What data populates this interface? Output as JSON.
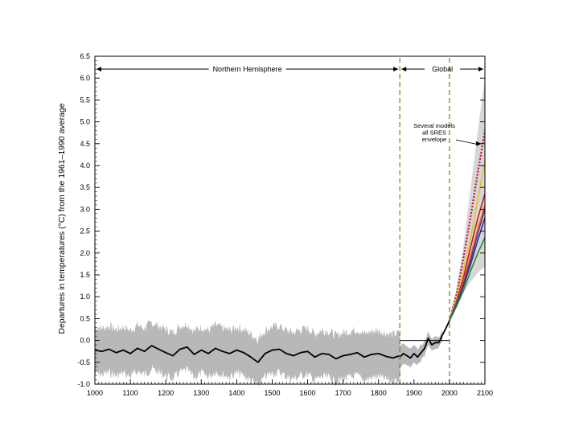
{
  "chart_data": {
    "type": "line",
    "title": "",
    "ylabel": "Departures in temperatures (°C) from the 1961–1990 average",
    "xlabel": "",
    "xlim": [
      1000,
      2100
    ],
    "ylim": [
      -1.0,
      6.5
    ],
    "x_ticks": [
      1000,
      1100,
      1200,
      1300,
      1400,
      1500,
      1600,
      1700,
      1800,
      1900,
      2000,
      2100
    ],
    "x_tick_labels": [
      "1000",
      "1100",
      "1200",
      "1300",
      "1400",
      "1500",
      "1600",
      "1700",
      "1800",
      "1900",
      "2000",
      "2100"
    ],
    "y_ticks": [
      -1.0,
      -0.5,
      0.0,
      0.5,
      1.0,
      1.5,
      2.0,
      2.5,
      3.0,
      3.5,
      4.0,
      4.5,
      5.0,
      5.5,
      6.0,
      6.5
    ],
    "y_tick_labels": [
      "-1.0",
      "-0.5",
      "0.0",
      "0.5",
      "1.0",
      "1.5",
      "2.0",
      "2.5",
      "3.0",
      "3.5",
      "4.0",
      "4.5",
      "5.0",
      "5.5",
      "6.0",
      "6.5"
    ],
    "grid": false,
    "regions": [
      {
        "label": "Northern Hemisphere",
        "x": [
          1000,
          1860
        ]
      },
      {
        "label": "Global",
        "x": [
          1860,
          2100
        ]
      }
    ],
    "dividers": [
      1860,
      2000
    ],
    "annotation": {
      "text": [
        "Several models",
        "all SRES",
        "envelope"
      ],
      "points_to": [
        2090,
        4.5
      ]
    },
    "reference_segment": {
      "x": [
        1860,
        2000
      ],
      "y": 0.0
    },
    "series": [
      {
        "role": "reconstruction",
        "color": "#000000",
        "x": [
          1000,
          1020,
          1040,
          1060,
          1080,
          1100,
          1120,
          1140,
          1160,
          1180,
          1200,
          1220,
          1240,
          1260,
          1280,
          1300,
          1320,
          1340,
          1360,
          1380,
          1400,
          1420,
          1440,
          1460,
          1480,
          1500,
          1520,
          1540,
          1560,
          1580,
          1600,
          1620,
          1640,
          1660,
          1680,
          1700,
          1720,
          1740,
          1760,
          1780,
          1800,
          1820,
          1840,
          1860
        ],
        "y": [
          -0.22,
          -0.25,
          -0.2,
          -0.28,
          -0.22,
          -0.3,
          -0.18,
          -0.25,
          -0.12,
          -0.2,
          -0.28,
          -0.35,
          -0.2,
          -0.15,
          -0.32,
          -0.22,
          -0.3,
          -0.18,
          -0.25,
          -0.3,
          -0.22,
          -0.28,
          -0.38,
          -0.5,
          -0.3,
          -0.22,
          -0.2,
          -0.3,
          -0.35,
          -0.28,
          -0.25,
          -0.38,
          -0.3,
          -0.32,
          -0.42,
          -0.35,
          -0.32,
          -0.28,
          -0.38,
          -0.32,
          -0.3,
          -0.36,
          -0.4,
          -0.35
        ]
      },
      {
        "role": "instrumental",
        "color": "#000000",
        "x": [
          1860,
          1870,
          1880,
          1890,
          1900,
          1910,
          1920,
          1930,
          1940,
          1950,
          1960,
          1970,
          1980,
          1990,
          2000
        ],
        "y": [
          -0.38,
          -0.3,
          -0.35,
          -0.4,
          -0.3,
          -0.38,
          -0.28,
          -0.18,
          0.05,
          -0.1,
          -0.05,
          -0.05,
          0.12,
          0.28,
          0.45
        ]
      },
      {
        "role": "SRES envelope upper",
        "color": "#d0d0d0",
        "x": [
          2000,
          2020,
          2040,
          2060,
          2080,
          2100
        ],
        "y": [
          0.5,
          1.2,
          2.2,
          3.5,
          4.8,
          6.0
        ]
      },
      {
        "role": "SRES envelope lower",
        "color": "#d0d0d0",
        "x": [
          2000,
          2020,
          2040,
          2060,
          2080,
          2100
        ],
        "y": [
          0.4,
          0.75,
          1.1,
          1.35,
          1.55,
          1.7
        ]
      },
      {
        "role": "scenario",
        "color": "#c8102e",
        "dotted": true,
        "x": [
          2000,
          2020,
          2040,
          2060,
          2080,
          2100
        ],
        "y": [
          0.45,
          1.05,
          1.9,
          2.85,
          3.85,
          4.8
        ]
      },
      {
        "role": "scenario",
        "color": "#e8c030",
        "x": [
          2000,
          2020,
          2040,
          2060,
          2080,
          2100
        ],
        "y": [
          0.45,
          0.95,
          1.6,
          2.35,
          3.25,
          4.1
        ]
      },
      {
        "role": "scenario",
        "color": "#d01818",
        "x": [
          2000,
          2020,
          2040,
          2060,
          2080,
          2100
        ],
        "y": [
          0.45,
          0.9,
          1.45,
          2.15,
          2.8,
          3.35
        ]
      },
      {
        "role": "scenario",
        "color": "#e07018",
        "x": [
          2000,
          2020,
          2040,
          2060,
          2080,
          2100
        ],
        "y": [
          0.45,
          0.88,
          1.35,
          1.95,
          2.55,
          3.1
        ]
      },
      {
        "role": "scenario",
        "color": "#6a2aa0",
        "x": [
          2000,
          2020,
          2040,
          2060,
          2080,
          2100
        ],
        "y": [
          0.45,
          0.85,
          1.3,
          1.85,
          2.45,
          3.0
        ]
      },
      {
        "role": "scenario",
        "color": "#1a3a90",
        "x": [
          2000,
          2020,
          2040,
          2060,
          2080,
          2100
        ],
        "y": [
          0.45,
          0.82,
          1.25,
          1.75,
          2.3,
          2.8
        ]
      },
      {
        "role": "scenario",
        "color": "#2a8a2a",
        "x": [
          2000,
          2020,
          2040,
          2060,
          2080,
          2100
        ],
        "y": [
          0.45,
          0.78,
          1.15,
          1.6,
          2.0,
          2.35
        ]
      }
    ]
  }
}
